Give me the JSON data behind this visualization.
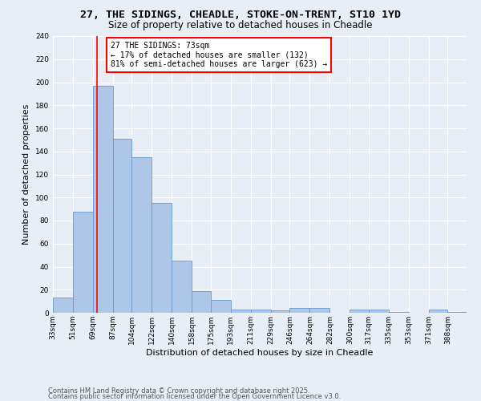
{
  "title1": "27, THE SIDINGS, CHEADLE, STOKE-ON-TRENT, ST10 1YD",
  "title2": "Size of property relative to detached houses in Cheadle",
  "xlabel": "Distribution of detached houses by size in Cheadle",
  "ylabel": "Number of detached properties",
  "bin_labels": [
    "33sqm",
    "51sqm",
    "69sqm",
    "87sqm",
    "104sqm",
    "122sqm",
    "140sqm",
    "158sqm",
    "175sqm",
    "193sqm",
    "211sqm",
    "229sqm",
    "246sqm",
    "264sqm",
    "282sqm",
    "300sqm",
    "317sqm",
    "335sqm",
    "353sqm",
    "371sqm",
    "388sqm"
  ],
  "bin_edges": [
    33,
    51,
    69,
    87,
    104,
    122,
    140,
    158,
    175,
    193,
    211,
    229,
    246,
    264,
    282,
    300,
    317,
    335,
    353,
    371,
    388
  ],
  "counts": [
    13,
    88,
    197,
    151,
    135,
    95,
    45,
    19,
    11,
    3,
    3,
    2,
    4,
    4,
    0,
    3,
    3,
    1,
    0,
    3,
    1
  ],
  "bar_color": "#aec6e8",
  "bar_edge_color": "#6699cc",
  "red_line_x": 73,
  "annotation_line1": "27 THE SIDINGS: 73sqm",
  "annotation_line2": "← 17% of detached houses are smaller (132)",
  "annotation_line3": "81% of semi-detached houses are larger (623) →",
  "annotation_box_color": "white",
  "annotation_box_edge": "red",
  "ylim": [
    0,
    240
  ],
  "yticks": [
    0,
    20,
    40,
    60,
    80,
    100,
    120,
    140,
    160,
    180,
    200,
    220,
    240
  ],
  "footnote1": "Contains HM Land Registry data © Crown copyright and database right 2025.",
  "footnote2": "Contains public sector information licensed under the Open Government Licence v3.0.",
  "bg_color": "#e8eef5",
  "plot_bg_color": "#e8eef5",
  "grid_color": "#ffffff",
  "title1_fontsize": 9.5,
  "title2_fontsize": 8.5,
  "xlabel_fontsize": 8,
  "ylabel_fontsize": 8,
  "tick_fontsize": 6.5,
  "footnote_fontsize": 6,
  "annot_fontsize": 7
}
